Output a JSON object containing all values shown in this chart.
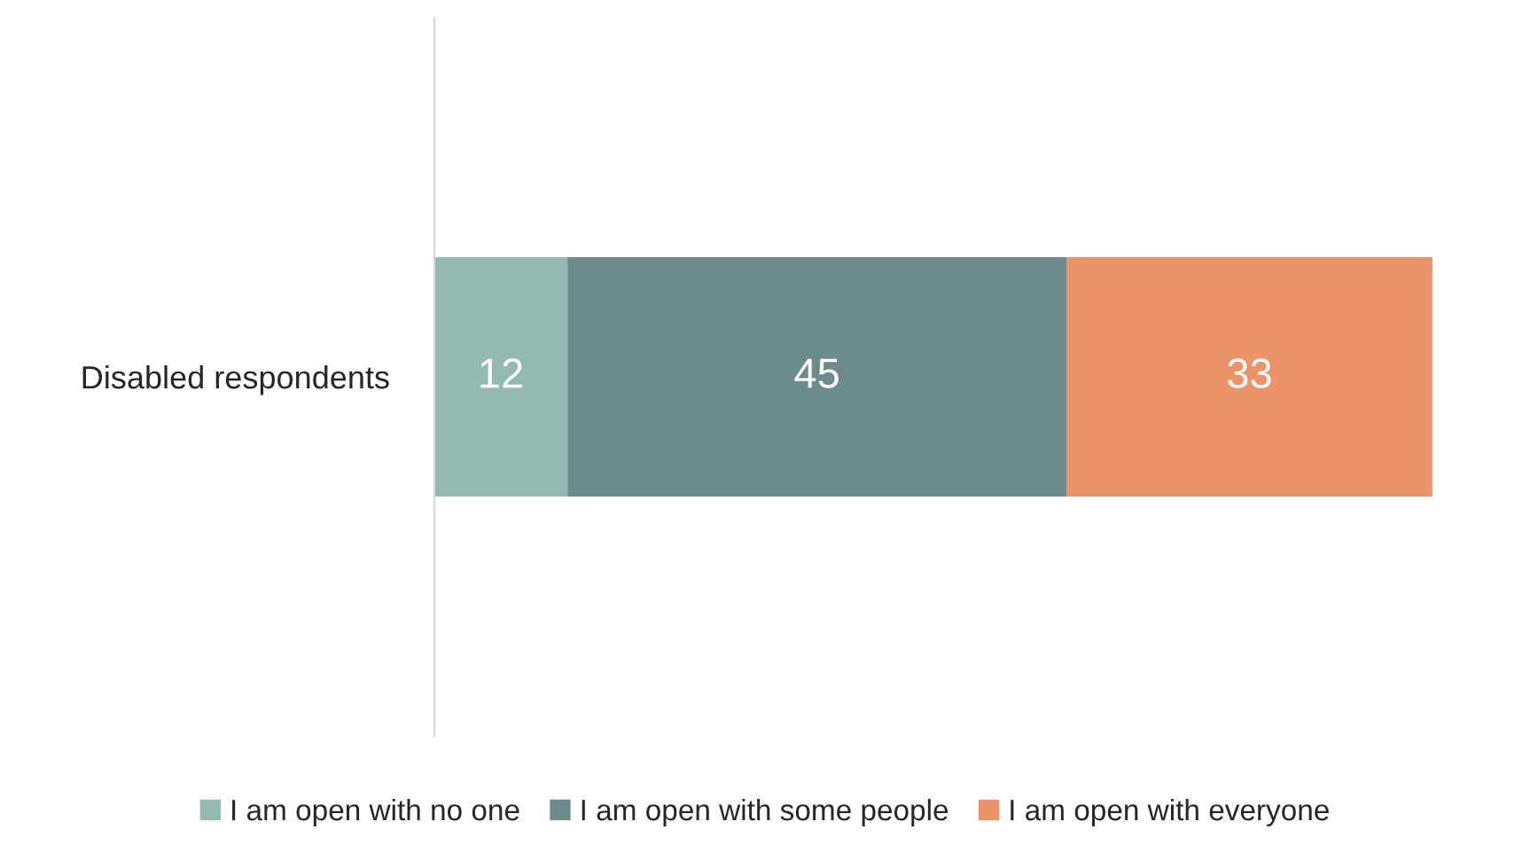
{
  "chart_data": {
    "type": "bar",
    "orientation": "horizontal",
    "stacked": true,
    "categories": [
      "Disabled respondents"
    ],
    "series": [
      {
        "name": "I am open with no one",
        "color": "#93bab0",
        "values": [
          12
        ]
      },
      {
        "name": "I am open with some people",
        "color": "#6e8b8c",
        "values": [
          45
        ]
      },
      {
        "name": "I am open with everyone",
        "color": "#eb936b",
        "values": [
          33
        ]
      }
    ],
    "data_labels": true,
    "legend": "bottom",
    "grid": false,
    "tick_labels": "y"
  }
}
